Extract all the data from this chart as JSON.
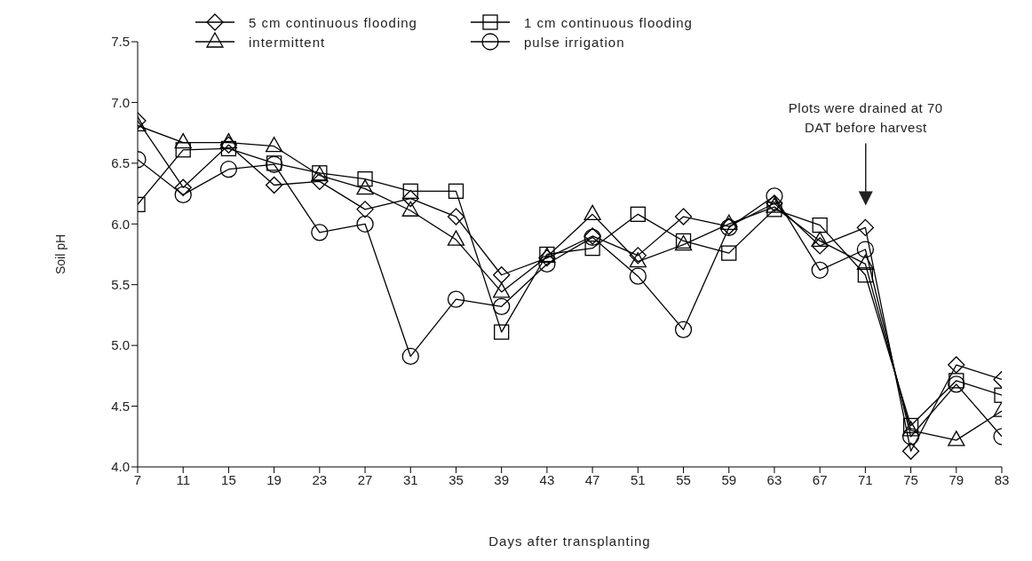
{
  "chart_data": {
    "type": "line",
    "xlabel": "Days after transplanting",
    "ylabel": "Soil pH",
    "x": [
      7,
      11,
      15,
      19,
      23,
      27,
      31,
      35,
      39,
      43,
      47,
      51,
      55,
      59,
      63,
      67,
      71,
      75,
      79,
      83
    ],
    "xlim": [
      7,
      83
    ],
    "xticks": [
      7,
      11,
      15,
      19,
      23,
      27,
      31,
      35,
      39,
      43,
      47,
      51,
      55,
      59,
      63,
      67,
      71,
      75,
      79,
      83
    ],
    "ylim": [
      4.0,
      7.5
    ],
    "yticks": [
      {
        "value": 4.0,
        "label": "4.0"
      },
      {
        "value": 4.5,
        "label": "4.5"
      },
      {
        "value": 5.0,
        "label": "5.0"
      },
      {
        "value": 5.5,
        "label": "5.5"
      },
      {
        "value": 6.0,
        "label": "6.0"
      },
      {
        "value": 6.5,
        "label": "6.5"
      },
      {
        "value": 7.0,
        "label": "7.0"
      },
      {
        "value": 7.5,
        "label": "7.5"
      }
    ],
    "grid": false,
    "legend": "top",
    "line_style": "solid",
    "series": [
      {
        "name": "5 cm continuous flooding",
        "color": "#000000",
        "marker": "diamond",
        "values": [
          6.85,
          6.3,
          6.65,
          6.32,
          6.35,
          6.12,
          6.21,
          6.06,
          5.58,
          5.72,
          5.9,
          5.74,
          6.06,
          5.98,
          6.17,
          5.82,
          5.97,
          4.13,
          4.84,
          4.72
        ]
      },
      {
        "name": "1 cm continuous flooding",
        "color": "#000000",
        "marker": "square",
        "values": [
          6.16,
          6.61,
          6.62,
          6.5,
          6.42,
          6.37,
          6.27,
          6.27,
          5.11,
          5.75,
          5.8,
          6.08,
          5.86,
          5.76,
          6.12,
          5.99,
          5.58,
          4.34,
          4.71,
          4.59
        ]
      },
      {
        "name": "intermittent",
        "color": "#000000",
        "marker": "triangle",
        "values": [
          6.81,
          6.67,
          6.67,
          6.64,
          6.4,
          6.29,
          6.11,
          5.87,
          5.44,
          5.73,
          6.08,
          5.69,
          5.83,
          6.0,
          6.14,
          5.86,
          5.67,
          4.3,
          4.22,
          4.46
        ]
      },
      {
        "name": "pulse irrigation",
        "color": "#000000",
        "marker": "circle",
        "values": [
          6.53,
          6.24,
          6.45,
          6.49,
          5.93,
          6.0,
          4.91,
          5.38,
          5.32,
          5.67,
          5.89,
          5.57,
          5.13,
          5.97,
          6.23,
          5.62,
          5.79,
          4.25,
          4.68,
          4.25
        ]
      }
    ],
    "annotations": [
      "Plots were drained at 70 DAT before harvest"
    ]
  }
}
